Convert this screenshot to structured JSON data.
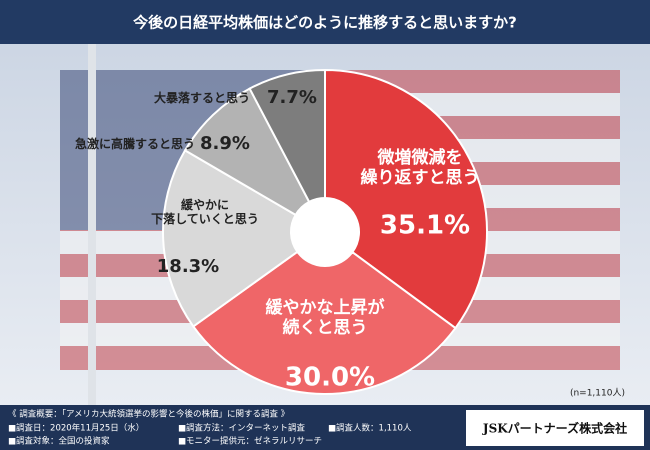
{
  "header": {
    "title": "今後の日経平均株価はどのように推移すると思いますか?"
  },
  "chart_data": {
    "type": "pie",
    "categories": [
      "微増微減を\n繰り返すと思う",
      "緩やかな上昇が\n続くと思う",
      "緩やかに\n下落していくと思う",
      "急激に高騰すると思う",
      "大暴落すると思う"
    ],
    "values": [
      35.1,
      30.0,
      18.3,
      8.9,
      7.7
    ],
    "value_labels": [
      "35.1%",
      "30.0%",
      "18.3%",
      "8.9%",
      "7.7%"
    ],
    "colors": [
      "#e23b3d",
      "#ef6668",
      "#d9d9d9",
      "#b3b3b3",
      "#7d7d7d"
    ],
    "note": "(n=1,110人)"
  },
  "footer": {
    "heading": "《 調査概要：「アメリカ大統領選挙の影響と今後の株価」に関する調査 》",
    "items": [
      "■調査日：2020年11月25日（水）",
      "■調査方法：インターネット調査",
      "■調査人数：1,110人",
      "■調査対象：全国の投資家",
      "■モニター提供元：ゼネラルリサーチ"
    ],
    "logo": "JSKパートナーズ株式会社"
  }
}
